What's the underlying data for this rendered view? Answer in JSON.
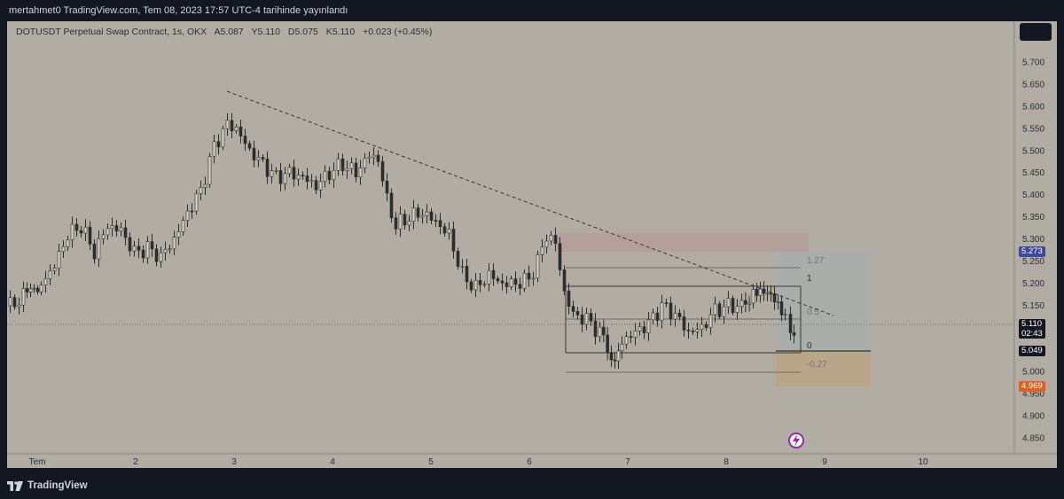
{
  "header": {
    "text": "mertahmet0 TradingView.com, Tem 08, 2023 17:57 UTC-4 tarihinde yayınlandı"
  },
  "legend": {
    "symbol": "DOTUSDT Perpetual Swap Contract, 1s, OKX",
    "open": "A5.087",
    "high": "Y5.110",
    "low": "D5.075",
    "close": "K5.110",
    "change": "+0.023 (+0.45%)"
  },
  "price_axis": {
    "ticks": [
      "5.700",
      "5.650",
      "5.600",
      "5.550",
      "5.500",
      "5.450",
      "5.400",
      "5.350",
      "5.300",
      "5.250",
      "5.200",
      "5.150",
      "5.100",
      "5.050",
      "5.000",
      "4.950",
      "4.900",
      "4.850"
    ],
    "labels": {
      "target": "5.273",
      "last": "5.110",
      "countdown": "02:43",
      "entry": "5.049",
      "stop": "4.969"
    },
    "colors": {
      "target": "#3d4a9a",
      "last": "#131722",
      "entry": "#131722",
      "stop": "#e2601f"
    }
  },
  "time_axis": {
    "ticks": [
      "Tem",
      "2",
      "3",
      "4",
      "5",
      "6",
      "7",
      "8",
      "9",
      "10"
    ]
  },
  "fib": {
    "levels": [
      "1.27",
      "1",
      "0.5",
      "0",
      "-0.27"
    ]
  },
  "footer": {
    "brand": "TradingView"
  }
}
